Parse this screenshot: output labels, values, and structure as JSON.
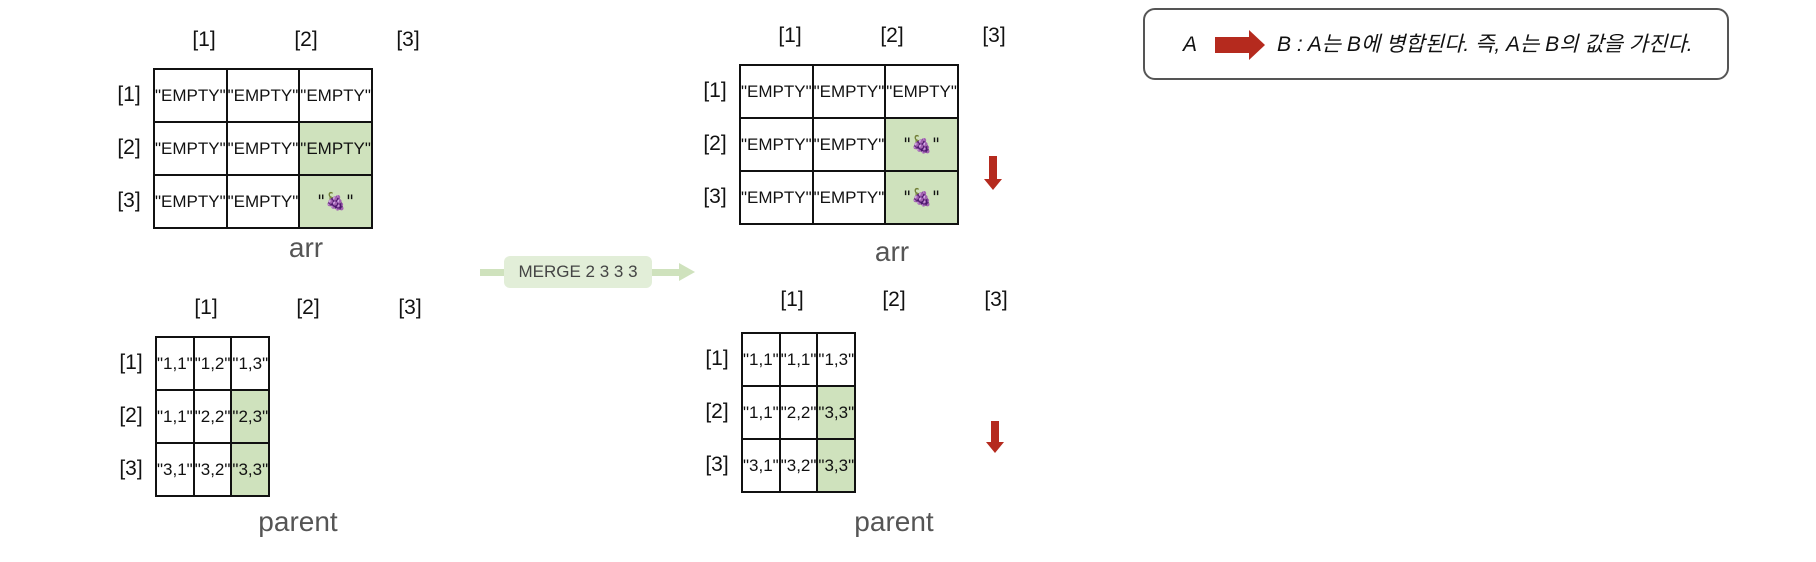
{
  "col_headers": [
    "[1]",
    "[2]",
    "[3]"
  ],
  "row_headers": [
    "[1]",
    "[2]",
    "[3]"
  ],
  "before": {
    "arr": {
      "caption": "arr",
      "cells": [
        [
          "\"EMPTY\"",
          "\"EMPTY\"",
          "\"EMPTY\""
        ],
        [
          "\"EMPTY\"",
          "\"EMPTY\"",
          "\"EMPTY\""
        ],
        [
          "\"EMPTY\"",
          "\"EMPTY\"",
          "\"🍇\""
        ]
      ]
    },
    "parent": {
      "caption": "parent",
      "cells": [
        [
          "\"1,1\"",
          "\"1,2\"",
          "\"1,3\""
        ],
        [
          "\"1,1\"",
          "\"2,2\"",
          "\"2,3\""
        ],
        [
          "\"3,1\"",
          "\"3,2\"",
          "\"3,3\""
        ]
      ]
    }
  },
  "after": {
    "arr": {
      "caption": "arr",
      "cells": [
        [
          "\"EMPTY\"",
          "\"EMPTY\"",
          "\"EMPTY\""
        ],
        [
          "\"EMPTY\"",
          "\"EMPTY\"",
          "\"🍇\""
        ],
        [
          "\"EMPTY\"",
          "\"EMPTY\"",
          "\"🍇\""
        ]
      ]
    },
    "parent": {
      "caption": "parent",
      "cells": [
        [
          "\"1,1\"",
          "\"1,1\"",
          "\"1,3\""
        ],
        [
          "\"1,1\"",
          "\"2,2\"",
          "\"3,3\""
        ],
        [
          "\"3,1\"",
          "\"3,2\"",
          "\"3,3\""
        ]
      ]
    }
  },
  "merge_label": "MERGE 2 3 3 3",
  "legend": {
    "a": "A",
    "description": "B : A는 B에 병합된다. 즉, A는 B의 값을 가진다."
  },
  "colors": {
    "highlight": "#cfe2bd",
    "arrow": "#b52a1e",
    "merge_pill": "#e2eed8"
  }
}
